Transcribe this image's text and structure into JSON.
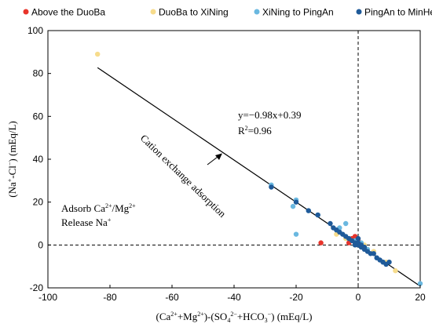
{
  "chart_data": {
    "type": "scatter",
    "legend": {
      "placement": "top",
      "entries": [
        {
          "label": "Above the DuoBa",
          "color": "#e8342b"
        },
        {
          "label": "DuoBa to XiNing",
          "color": "#f7dc8c"
        },
        {
          "label": "XiNing to PingAn",
          "color": "#6ab8e0"
        },
        {
          "label": "PingAn to MinHe",
          "color": "#1f5a99"
        }
      ]
    },
    "xlim": [
      -100,
      20
    ],
    "ylim": [
      -20,
      100
    ],
    "xticks": [
      "-100",
      "-80",
      "-60",
      "-40",
      "-20",
      "0",
      "20"
    ],
    "yticks": [
      "-20",
      "0",
      "20",
      "40",
      "60",
      "80",
      "100"
    ],
    "xticks_values": [
      -100,
      -80,
      -60,
      -40,
      -20,
      0,
      20
    ],
    "yticks_values": [
      -20,
      0,
      20,
      40,
      60,
      80,
      100
    ],
    "grid": false,
    "reference_lines": {
      "x": 0,
      "y": 0,
      "style": "dashed"
    },
    "fit": {
      "slope": -0.98,
      "intercept": 0.39,
      "x_range": [
        -84,
        20
      ]
    },
    "annotations": {
      "equation": "y=−0.98x+0.39",
      "r2_prefix": "R",
      "r2_sup": "2",
      "r2_suffix": "=0.96",
      "arrow_label": "Cation exchange adsorption",
      "adsorb_prefix": "Adsorb Ca",
      "adsorb_sup1": "2+",
      "adsorb_mid": "/Mg",
      "adsorb_sup2": "2+",
      "release_prefix": "Release Na",
      "release_sup": "+"
    },
    "xlabel_parts": [
      "(Ca",
      "2+",
      "+Mg",
      "2+",
      ")-(SO",
      "4",
      "2−",
      "+HCO",
      "3",
      "−",
      ") (mEq/L)"
    ],
    "ylabel_parts": [
      "(Na",
      "+",
      "-Cl",
      "−",
      ") (mEq/L)"
    ],
    "series": [
      {
        "name": "Above the DuoBa",
        "color": "#e8342b",
        "points": [
          [
            -12,
            1
          ],
          [
            -2,
            3
          ],
          [
            -1,
            4
          ],
          [
            0,
            2
          ],
          [
            -3,
            1
          ],
          [
            1,
            0
          ]
        ]
      },
      {
        "name": "DuoBa to XiNing",
        "color": "#f7dc8c",
        "points": [
          [
            -84,
            89
          ],
          [
            -7,
            5
          ],
          [
            -4,
            3
          ],
          [
            -2,
            2
          ],
          [
            2,
            0
          ],
          [
            5,
            -3
          ],
          [
            9,
            -8
          ],
          [
            12,
            -12
          ]
        ]
      },
      {
        "name": "XiNing to PingAn",
        "color": "#6ab8e0",
        "points": [
          [
            -28,
            28
          ],
          [
            -20,
            21
          ],
          [
            -21,
            18
          ],
          [
            -20,
            5
          ],
          [
            -16,
            16
          ],
          [
            -13,
            14
          ],
          [
            -4,
            10
          ],
          [
            -6,
            8
          ],
          [
            -1,
            2
          ],
          [
            1,
            1
          ],
          [
            3,
            -2
          ],
          [
            6,
            -6
          ],
          [
            8,
            -8
          ],
          [
            20,
            -18
          ]
        ]
      },
      {
        "name": "PingAn to MinHe",
        "color": "#1f5a99",
        "points": [
          [
            -28,
            27
          ],
          [
            -20,
            20
          ],
          [
            -16,
            16
          ],
          [
            -13,
            14
          ],
          [
            -9,
            10
          ],
          [
            -8,
            8
          ],
          [
            -7,
            7
          ],
          [
            -6,
            6
          ],
          [
            -5,
            5
          ],
          [
            -4,
            4
          ],
          [
            -3,
            3
          ],
          [
            -2,
            2
          ],
          [
            -1,
            1
          ],
          [
            0,
            0
          ],
          [
            0,
            1
          ],
          [
            1,
            0
          ],
          [
            1,
            -1
          ],
          [
            2,
            -1
          ],
          [
            2,
            -2
          ],
          [
            3,
            -3
          ],
          [
            4,
            -4
          ],
          [
            5,
            -4
          ],
          [
            6,
            -6
          ],
          [
            7,
            -7
          ],
          [
            8,
            -8
          ],
          [
            9,
            -9
          ],
          [
            10,
            -8
          ],
          [
            0,
            3
          ],
          [
            -1,
            0
          ]
        ]
      }
    ]
  }
}
